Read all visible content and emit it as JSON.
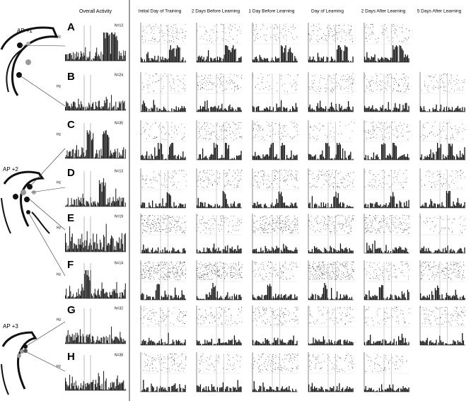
{
  "header": {
    "overall": "Overall Activity",
    "columns": [
      "Initial Day of Training",
      "2 Days Before Learning",
      "1 Day Before Learning",
      "Day of Learning",
      "2 Days After Learning",
      "5 Days After Learning"
    ]
  },
  "sections": [
    {
      "label": "AP +1"
    },
    {
      "label": "AP +2"
    },
    {
      "label": "AP +3"
    }
  ],
  "rows": [
    {
      "letter": "A",
      "n": "N=13",
      "hz": "Hz"
    },
    {
      "letter": "B",
      "n": "N=24",
      "hz": "Hz"
    },
    {
      "letter": "C",
      "n": "N=35",
      "hz": "Hz"
    },
    {
      "letter": "D",
      "n": "N=13",
      "hz": "Hz"
    },
    {
      "letter": "E",
      "n": "N=19",
      "hz": "Hz"
    },
    {
      "letter": "F",
      "n": "N=14",
      "hz": "Hz"
    },
    {
      "letter": "G",
      "n": "N=32",
      "hz": "Hz"
    },
    {
      "letter": "H",
      "n": "N=38",
      "hz": "Hz"
    }
  ]
}
